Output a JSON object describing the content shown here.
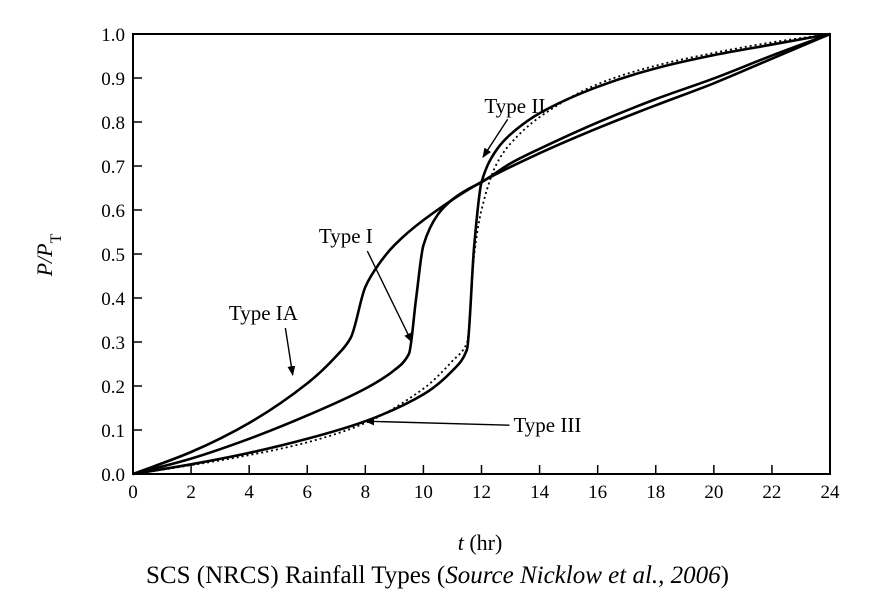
{
  "caption": {
    "prefix": "SCS (NRCS) Rainfall Types (",
    "source": "Source Nicklow et al., 2006",
    "suffix": ")"
  },
  "chart_data": {
    "type": "line",
    "title": "",
    "xlabel": {
      "var": "t",
      "unit": " (hr)"
    },
    "ylabel": {
      "var": "P/P",
      "sub": "T"
    },
    "xlim": [
      0,
      24
    ],
    "ylim": [
      0,
      1
    ],
    "xticks": [
      "0",
      "2",
      "4",
      "6",
      "8",
      "10",
      "12",
      "14",
      "16",
      "18",
      "20",
      "22",
      "24"
    ],
    "yticks": [
      "0.0",
      "0.1",
      "0.2",
      "0.3",
      "0.4",
      "0.5",
      "0.6",
      "0.7",
      "0.8",
      "0.9",
      "1.0"
    ],
    "grid": false,
    "legend": "none",
    "series": [
      {
        "name": "Type IA",
        "style": "solid",
        "x": [
          0,
          2,
          4,
          6,
          7,
          7.5,
          8,
          8.5,
          9,
          10,
          12,
          14,
          16,
          18,
          20,
          22,
          24
        ],
        "y": [
          0,
          0.05,
          0.116,
          0.206,
          0.268,
          0.31,
          0.425,
          0.48,
          0.52,
          0.577,
          0.664,
          0.729,
          0.786,
          0.838,
          0.888,
          0.944,
          1.0
        ]
      },
      {
        "name": "Type I",
        "style": "solid",
        "x": [
          0,
          2,
          4,
          6,
          8,
          9,
          9.5,
          9.75,
          10,
          10.5,
          11,
          11.5,
          12,
          13,
          14,
          16,
          18,
          20,
          22,
          24
        ],
        "y": [
          0,
          0.035,
          0.08,
          0.133,
          0.194,
          0.236,
          0.273,
          0.4,
          0.52,
          0.59,
          0.624,
          0.646,
          0.663,
          0.706,
          0.739,
          0.799,
          0.852,
          0.899,
          0.951,
          1.0
        ]
      },
      {
        "name": "Type II",
        "style": "solid",
        "x": [
          0,
          2,
          4,
          6,
          8,
          10,
          11,
          11.5,
          11.75,
          12,
          12.5,
          13,
          14,
          16,
          18,
          20,
          22,
          24
        ],
        "y": [
          0,
          0.022,
          0.048,
          0.08,
          0.12,
          0.181,
          0.235,
          0.283,
          0.52,
          0.663,
          0.735,
          0.772,
          0.82,
          0.88,
          0.922,
          0.952,
          0.976,
          1.0
        ]
      },
      {
        "name": "Type III",
        "style": "dotted",
        "x": [
          0,
          2,
          4,
          6,
          8,
          10,
          11,
          11.5,
          11.75,
          12,
          12.5,
          13,
          14,
          16,
          18,
          20,
          22,
          24
        ],
        "y": [
          0,
          0.02,
          0.043,
          0.072,
          0.116,
          0.194,
          0.257,
          0.298,
          0.5,
          0.6,
          0.702,
          0.751,
          0.811,
          0.886,
          0.928,
          0.957,
          0.981,
          1.0
        ]
      }
    ],
    "annotations": [
      {
        "series": "Type IA",
        "text": "Type IA",
        "text_at": [
          3.3,
          0.35
        ],
        "arrow_to": [
          5.5,
          0.225
        ]
      },
      {
        "series": "Type I",
        "text": "Type I",
        "text_at": [
          6.4,
          0.525
        ],
        "arrow_to": [
          9.6,
          0.3
        ]
      },
      {
        "series": "Type II",
        "text": "Type II",
        "text_at": [
          12.1,
          0.82
        ],
        "arrow_to": [
          12.05,
          0.72
        ]
      },
      {
        "series": "Type III",
        "text": "Type III",
        "text_at": [
          13.1,
          0.095
        ],
        "arrow_to": [
          8.0,
          0.12
        ]
      }
    ]
  }
}
